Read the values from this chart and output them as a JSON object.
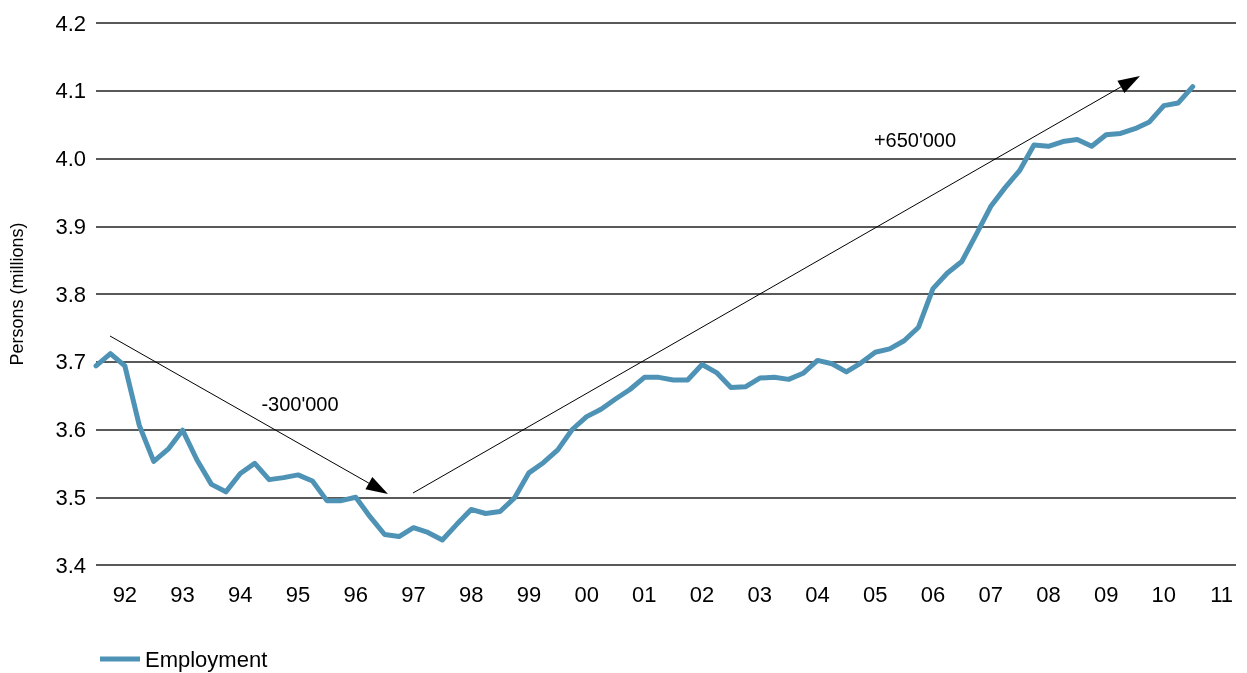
{
  "chart_data": {
    "type": "line",
    "ylabel": "Persons (millions)",
    "categories": [
      null,
      null,
      "92",
      null,
      null,
      null,
      "93",
      null,
      null,
      null,
      "94",
      null,
      null,
      null,
      "95",
      null,
      null,
      null,
      "96",
      null,
      null,
      null,
      "97",
      null,
      null,
      null,
      "98",
      null,
      null,
      null,
      "99",
      null,
      null,
      null,
      "00",
      null,
      null,
      null,
      "01",
      null,
      null,
      null,
      "02",
      null,
      null,
      null,
      "03",
      null,
      null,
      null,
      "04",
      null,
      null,
      null,
      "05",
      null,
      null,
      null,
      "06",
      null,
      null,
      null,
      "07",
      null,
      null,
      null,
      "08",
      null,
      null,
      null,
      "09",
      null,
      null,
      null,
      "10",
      null,
      null,
      null,
      "11",
      null
    ],
    "ylim": [
      3.4,
      4.2
    ],
    "yticks": [
      3.4,
      3.5,
      3.6,
      3.7,
      3.8,
      3.9,
      {
        "value": 4.0,
        "label": "4.0"
      },
      4.1,
      4.2
    ],
    "grid": "y",
    "legend": "bottom left",
    "marker": "none",
    "line_style": "solid",
    "annotations": [
      "-300'000",
      "+650'000"
    ],
    "series": [
      {
        "name": "Employment",
        "color": "#4e93b5",
        "values": [
          3.694,
          3.712,
          3.694,
          3.606,
          3.553,
          3.571,
          3.599,
          3.555,
          3.519,
          3.508,
          3.535,
          3.55,
          3.526,
          3.529,
          3.533,
          3.524,
          3.495,
          3.495,
          3.5,
          3.471,
          3.445,
          3.442,
          3.455,
          3.448,
          3.437,
          3.46,
          3.482,
          3.476,
          3.479,
          3.499,
          3.536,
          3.551,
          3.57,
          3.6,
          3.619,
          3.63,
          3.645,
          3.659,
          3.677,
          3.677,
          3.673,
          3.673,
          3.696,
          3.684,
          3.662,
          3.663,
          3.676,
          3.677,
          3.674,
          3.683,
          3.702,
          3.697,
          3.685,
          3.698,
          3.714,
          3.719,
          3.731,
          3.751,
          3.808,
          3.831,
          3.848,
          3.888,
          3.929,
          3.957,
          3.982,
          4.02,
          4.018,
          4.025,
          4.028,
          4.018,
          4.035,
          4.037,
          4.044,
          4.054,
          4.078,
          4.082,
          4.106,
          null,
          null,
          null
        ]
      }
    ]
  }
}
